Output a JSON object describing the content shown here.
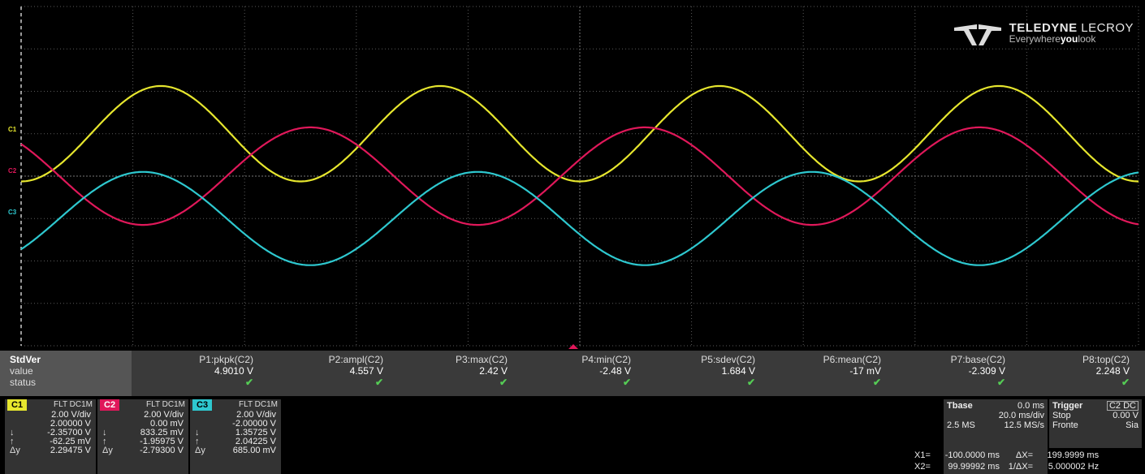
{
  "brand": {
    "name": "TELEDYNE",
    "name2": " LECROY",
    "tag_pre": "Everywhere",
    "tag_bold": "you",
    "tag_post": "look"
  },
  "channel_markers": {
    "c1": "C1",
    "c2": "C2",
    "c3": "C3"
  },
  "colors": {
    "c1": "#e6e62e",
    "c2": "#e0185a",
    "c3": "#2ec8cf",
    "grid": "#5a5a5a",
    "panel": "#3a3a3a"
  },
  "measurements": {
    "header": "StdVer",
    "row_value": "value",
    "row_status": "status",
    "params": [
      {
        "name": "P1:pkpk(C2)",
        "value": "4.9010 V",
        "status": "✔"
      },
      {
        "name": "P2:ampl(C2)",
        "value": "4.557 V",
        "status": "✔"
      },
      {
        "name": "P3:max(C2)",
        "value": "2.42 V",
        "status": "✔"
      },
      {
        "name": "P4:min(C2)",
        "value": "-2.48 V",
        "status": "✔"
      },
      {
        "name": "P5:sdev(C2)",
        "value": "1.684 V",
        "status": "✔"
      },
      {
        "name": "P6:mean(C2)",
        "value": "-17 mV",
        "status": "✔"
      },
      {
        "name": "P7:base(C2)",
        "value": "-2.309 V",
        "status": "✔"
      },
      {
        "name": "P8:top(C2)",
        "value": "2.248 V",
        "status": "✔"
      }
    ]
  },
  "channels": [
    {
      "tag": "C1",
      "cfg": "FLT DC1M",
      "vdiv": "2.00 V/div",
      "offset": "2.00000 V",
      "c1": "-2.35700 V",
      "c2": "-62.25 mV",
      "dy": "2.29475 V"
    },
    {
      "tag": "C2",
      "cfg": "FLT DC1M",
      "vdiv": "2.00 V/div",
      "offset": "0.00 mV",
      "c1": "833.25 mV",
      "c2": "-1.95975 V",
      "dy": "-2.79300 V"
    },
    {
      "tag": "C3",
      "cfg": "FLT DC1M",
      "vdiv": "2.00 V/div",
      "offset": "-2.00000 V",
      "c1": "1.35725 V",
      "c2": "2.04225 V",
      "dy": "685.00 mV"
    }
  ],
  "syms": {
    "down": "↓",
    "up": "↑",
    "dy": "Δy"
  },
  "timebase": {
    "label": "Tbase",
    "delay": "0.0 ms",
    "tdiv": "20.0 ms/div",
    "points": "2.5 MS",
    "rate": "12.5 MS/s"
  },
  "trigger": {
    "label": "Trigger",
    "src": "C2 DC",
    "mode": "Stop",
    "level": "0.00 V",
    "slope_label": "Fronte",
    "slope": "Sia"
  },
  "cursors": {
    "x1_label": "X1=",
    "x1": "-100.0000 ms",
    "dx_label": "ΔX=",
    "dx": "199.9999 ms",
    "x2_label": "X2=",
    "x2": "99.99992 ms",
    "inv_label": "1/ΔX=",
    "inv": "5.000002 Hz"
  },
  "chart_data": {
    "type": "line",
    "xlabel": "",
    "ylabel": "",
    "x_range_ms": [
      -100,
      100
    ],
    "y_range_div": [
      -4,
      4
    ],
    "grid": true,
    "series": [
      {
        "name": "C1",
        "amplitude_v": 2.25,
        "offset_v": 2.0,
        "frequency_hz": 20,
        "phase_deg": -90
      },
      {
        "name": "C2",
        "amplitude_v": 2.3,
        "offset_v": 0.0,
        "frequency_hz": 16.7,
        "phase_deg": 20
      },
      {
        "name": "C3",
        "amplitude_v": 2.2,
        "offset_v": -2.0,
        "frequency_hz": 16.7,
        "phase_deg": 200
      }
    ]
  }
}
